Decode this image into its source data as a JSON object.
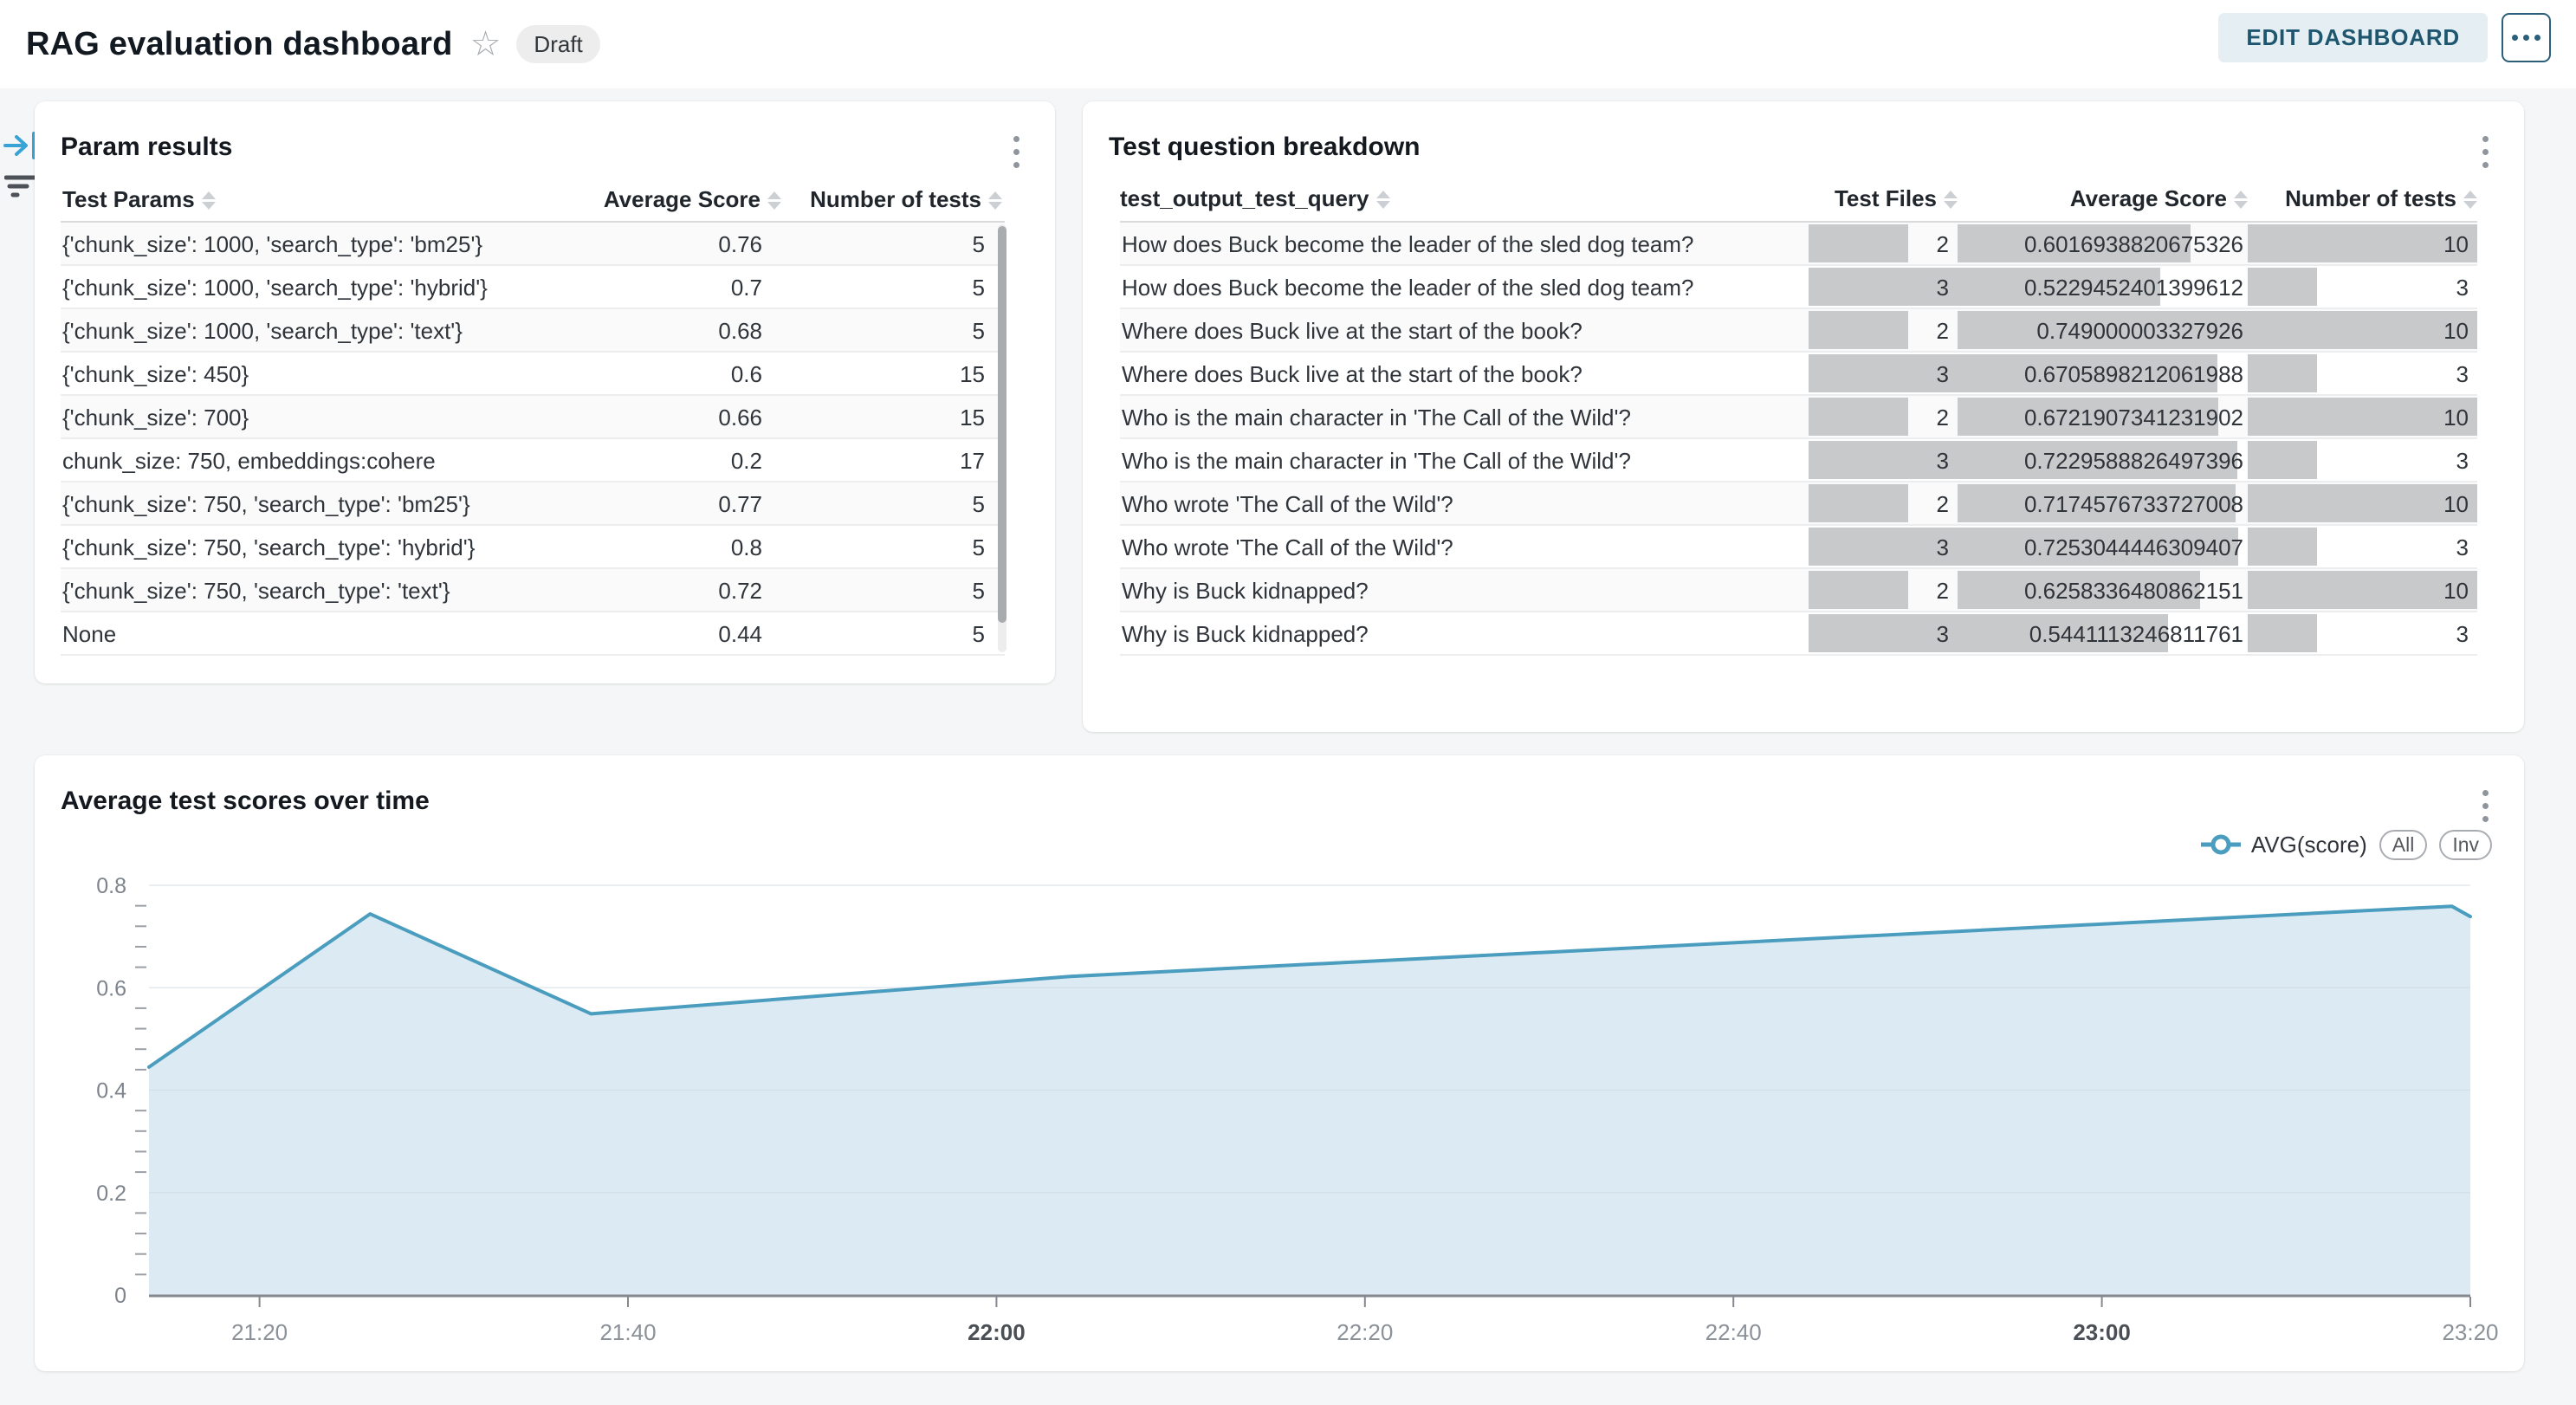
{
  "page": {
    "background": "#f5f6f7"
  },
  "header": {
    "title": "RAG evaluation dashboard",
    "status_badge": "Draft",
    "edit_button": "EDIT DASHBOARD",
    "icons": {
      "star": "☆",
      "more": "•••",
      "kebab": "⋮",
      "collapse_panel": "→|",
      "filter": "☰"
    }
  },
  "param_results": {
    "title": "Param results",
    "columns": [
      "Test Params",
      "Average Score",
      "Number of tests"
    ],
    "rows": [
      {
        "params": "{'chunk_size': 1000, 'search_type': 'bm25'}",
        "avg": "0.76",
        "n": "5"
      },
      {
        "params": "{'chunk_size': 1000, 'search_type': 'hybrid'}",
        "avg": "0.7",
        "n": "5"
      },
      {
        "params": "{'chunk_size': 1000, 'search_type': 'text'}",
        "avg": "0.68",
        "n": "5"
      },
      {
        "params": "{'chunk_size': 450}",
        "avg": "0.6",
        "n": "15"
      },
      {
        "params": "{'chunk_size': 700}",
        "avg": "0.66",
        "n": "15"
      },
      {
        "params": "chunk_size: 750, embeddings:cohere",
        "avg": "0.2",
        "n": "17"
      },
      {
        "params": "{'chunk_size': 750, 'search_type': 'bm25'}",
        "avg": "0.77",
        "n": "5"
      },
      {
        "params": "{'chunk_size': 750, 'search_type': 'hybrid'}",
        "avg": "0.8",
        "n": "5"
      },
      {
        "params": "{'chunk_size': 750, 'search_type': 'text'}",
        "avg": "0.72",
        "n": "5"
      },
      {
        "params": "None",
        "avg": "0.44",
        "n": "5"
      }
    ]
  },
  "question_breakdown": {
    "title": "Test question breakdown",
    "columns": [
      "test_output_test_query",
      "Test Files",
      "Average Score",
      "Number of tests"
    ],
    "bar_color": "#c8c9cb",
    "bar_max": {
      "files": 3,
      "score": 0.749000003327926,
      "tests": 10
    },
    "rows": [
      {
        "query": "How does Buck become the leader of the sled dog team?",
        "files": 2,
        "score": "0.6016938820675326",
        "tests": 10
      },
      {
        "query": "How does Buck become the leader of the sled dog team?",
        "files": 3,
        "score": "0.5229452401399612",
        "tests": 3
      },
      {
        "query": "Where does Buck live at the start of the book?",
        "files": 2,
        "score": "0.749000003327926",
        "tests": 10
      },
      {
        "query": "Where does Buck live at the start of the book?",
        "files": 3,
        "score": "0.6705898212061988",
        "tests": 3
      },
      {
        "query": "Who is the main character in 'The Call of the Wild'?",
        "files": 2,
        "score": "0.6721907341231902",
        "tests": 10
      },
      {
        "query": "Who is the main character in 'The Call of the Wild'?",
        "files": 3,
        "score": "0.7229588826497396",
        "tests": 3
      },
      {
        "query": "Who wrote 'The Call of the Wild'?",
        "files": 2,
        "score": "0.7174576733727008",
        "tests": 10
      },
      {
        "query": "Who wrote 'The Call of the Wild'?",
        "files": 3,
        "score": "0.7253044446309407",
        "tests": 3
      },
      {
        "query": "Why is Buck kidnapped?",
        "files": 2,
        "score": "0.6258336480862151",
        "tests": 10
      },
      {
        "query": "Why is Buck kidnapped?",
        "files": 3,
        "score": "0.5441113246811761",
        "tests": 3
      }
    ]
  },
  "chart_card": {
    "title": "Average test scores over time",
    "legend": {
      "series": "AVG(score)",
      "buttons": [
        "All",
        "Inv"
      ]
    }
  },
  "chart_data": {
    "type": "area",
    "title": "Average test scores over time",
    "series": [
      {
        "name": "AVG(score)",
        "points": [
          [
            "21:14",
            0.445
          ],
          [
            "21:26",
            0.744
          ],
          [
            "21:38",
            0.549
          ],
          [
            "22:04",
            0.622
          ],
          [
            "23:19",
            0.759
          ],
          [
            "23:20",
            0.739
          ]
        ]
      }
    ],
    "x_range": [
      "21:14",
      "23:20"
    ],
    "x_ticks": [
      "21:20",
      "21:40",
      "22:00",
      "22:20",
      "22:40",
      "23:00",
      "23:20"
    ],
    "x_ticks_bold": [
      "22:00",
      "23:00"
    ],
    "y_ticks": [
      0,
      0.2,
      0.4,
      0.6,
      0.8
    ],
    "y_minor_step": 0.04,
    "ylim": [
      0,
      0.8
    ],
    "grid": true,
    "legend_position": "top-right",
    "line_color": "#4a9dbe",
    "fill_color": "#dcebf3"
  }
}
